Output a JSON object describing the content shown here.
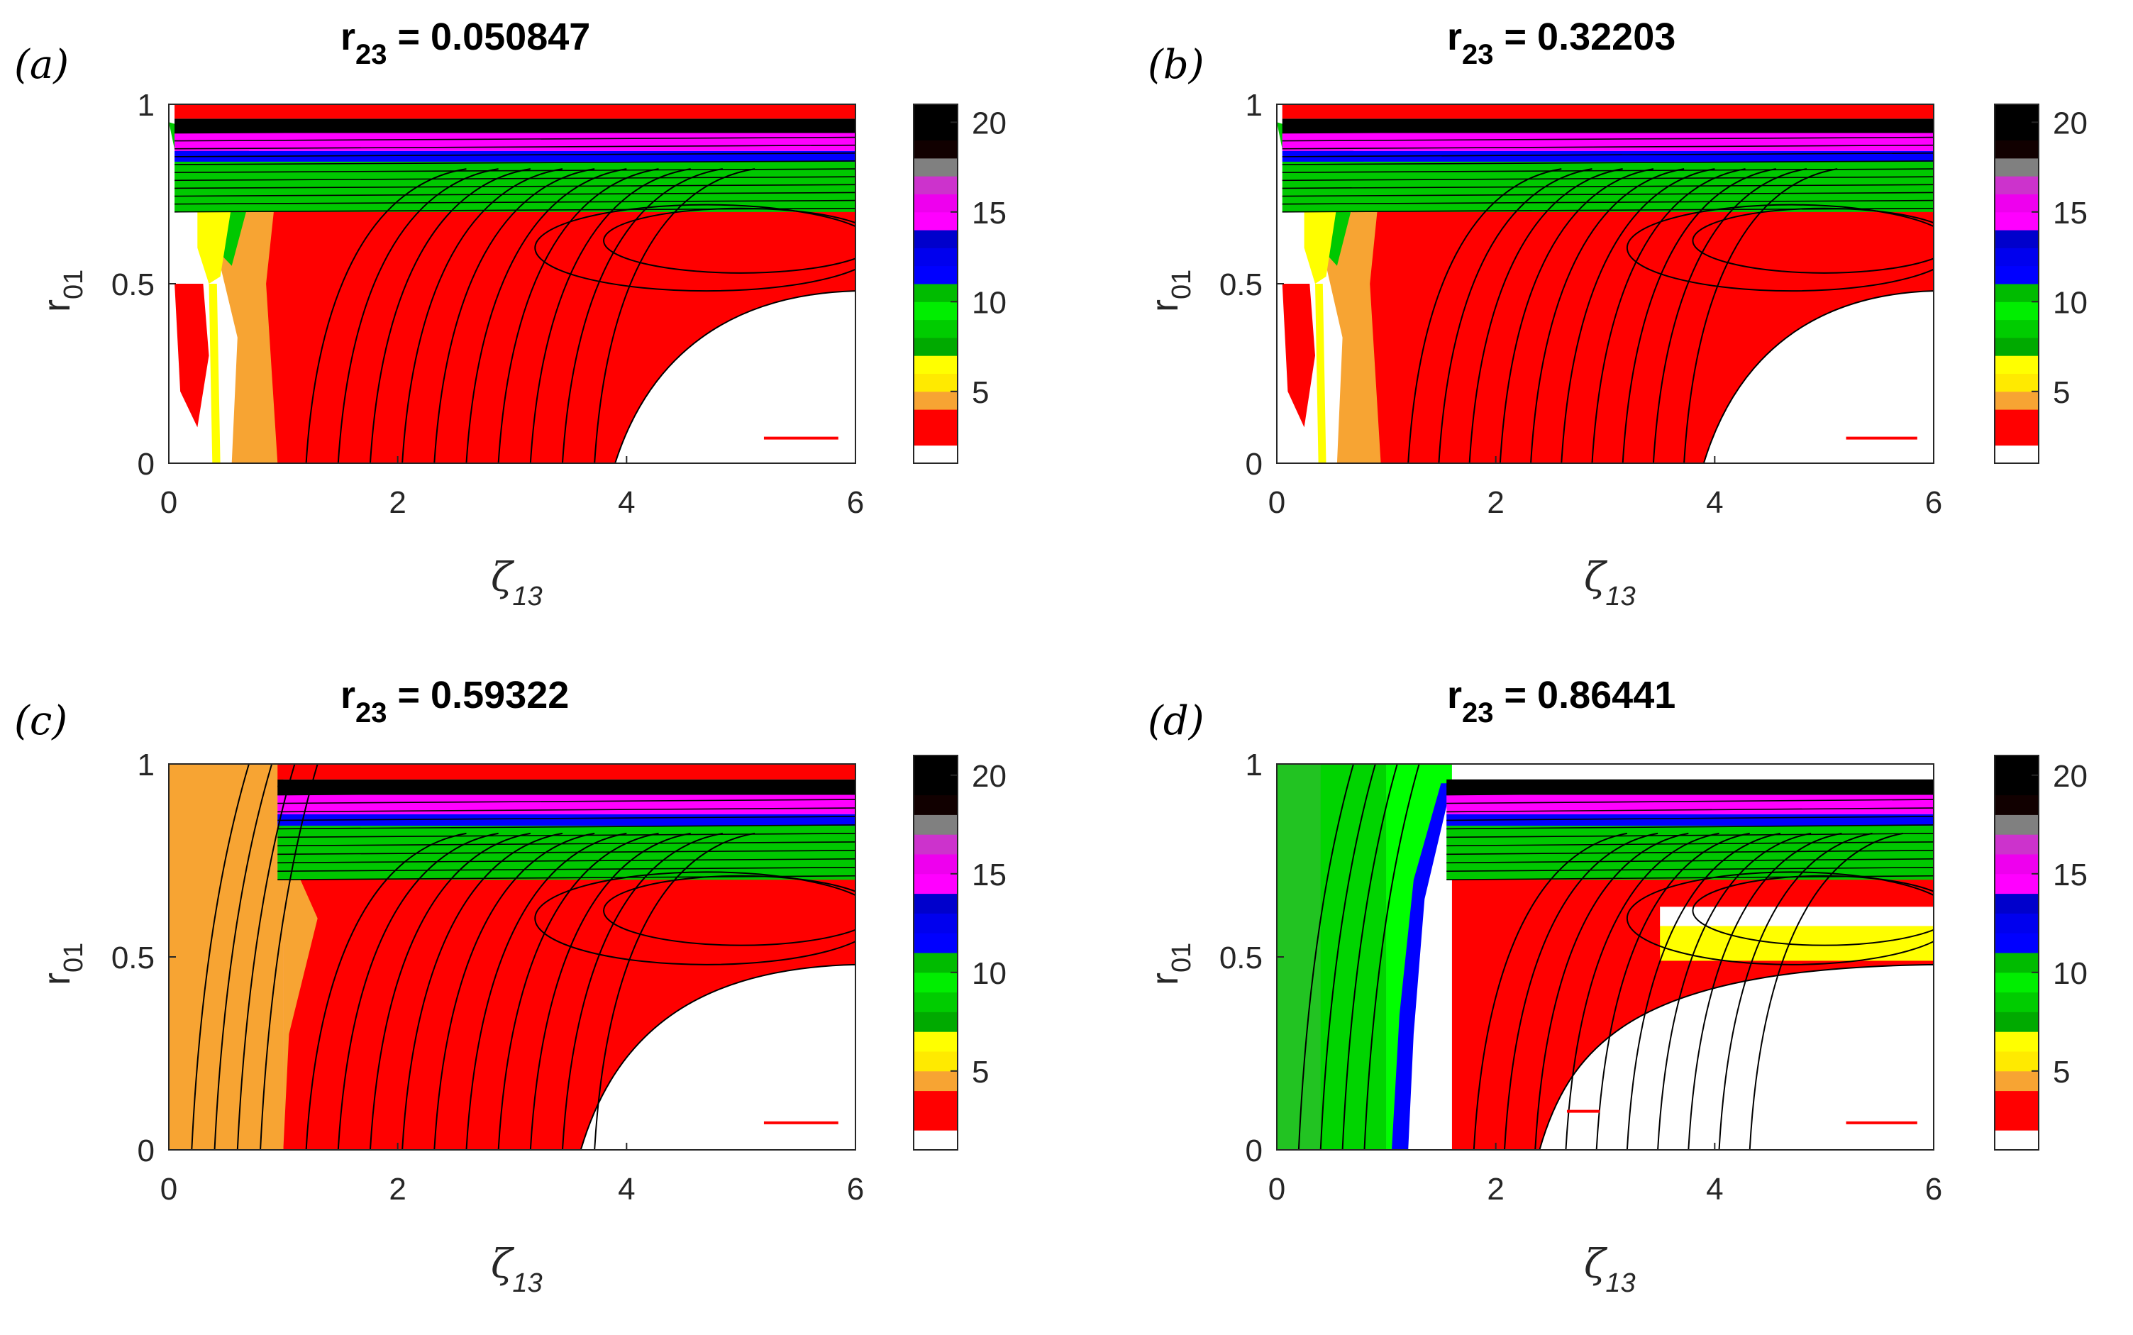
{
  "chart_data": [
    {
      "type": "heatmap",
      "panel_label": "(a)",
      "title": {
        "main": "r",
        "sub": "23",
        "value": " = 0.050847"
      },
      "xlabel": {
        "main": "ζ",
        "sub": "13"
      },
      "ylabel": {
        "main": "r",
        "sub": "01"
      },
      "xlim": [
        0,
        6
      ],
      "ylim": [
        0,
        1
      ],
      "xticks": [
        "0",
        "2",
        "4",
        "6"
      ],
      "yticks": [
        "0",
        "0.5",
        "1"
      ],
      "colorbar": {
        "range": [
          1,
          21
        ],
        "ticks": [
          "5",
          "10",
          "15",
          "20"
        ]
      }
    },
    {
      "type": "heatmap",
      "panel_label": "(b)",
      "title": {
        "main": "r",
        "sub": "23",
        "value": " = 0.32203"
      },
      "xlabel": {
        "main": "ζ",
        "sub": "13"
      },
      "ylabel": {
        "main": "r",
        "sub": "01"
      },
      "xlim": [
        0,
        6
      ],
      "ylim": [
        0,
        1
      ],
      "xticks": [
        "0",
        "2",
        "4",
        "6"
      ],
      "yticks": [
        "0",
        "0.5",
        "1"
      ],
      "colorbar": {
        "range": [
          1,
          21
        ],
        "ticks": [
          "5",
          "10",
          "15",
          "20"
        ]
      }
    },
    {
      "type": "heatmap",
      "panel_label": "(c)",
      "title": {
        "main": "r",
        "sub": "23",
        "value": " = 0.59322"
      },
      "xlabel": {
        "main": "ζ",
        "sub": "13"
      },
      "ylabel": {
        "main": "r",
        "sub": "01"
      },
      "xlim": [
        0,
        6
      ],
      "ylim": [
        0,
        1
      ],
      "xticks": [
        "0",
        "2",
        "4",
        "6"
      ],
      "yticks": [
        "0",
        "0.5",
        "1"
      ],
      "colorbar": {
        "range": [
          1,
          21
        ],
        "ticks": [
          "5",
          "10",
          "15",
          "20"
        ]
      }
    },
    {
      "type": "heatmap",
      "panel_label": "(d)",
      "title": {
        "main": "r",
        "sub": "23",
        "value": " = 0.86441"
      },
      "xlabel": {
        "main": "ζ",
        "sub": "13"
      },
      "ylabel": {
        "main": "r",
        "sub": "01"
      },
      "xlim": [
        0,
        6
      ],
      "ylim": [
        0,
        1
      ],
      "xticks": [
        "0",
        "2",
        "4",
        "6"
      ],
      "yticks": [
        "0",
        "0.5",
        "1"
      ],
      "colorbar": {
        "range": [
          1,
          21
        ],
        "ticks": [
          "5",
          "10",
          "15",
          "20"
        ]
      }
    }
  ],
  "colormap": [
    "#ffffff",
    "#ff0000",
    "#ff0000",
    "#f7a433",
    "#ffea00",
    "#ffff00",
    "#00aa00",
    "#00cc00",
    "#00ee00",
    "#00bb00",
    "#0000ff",
    "#0000ee",
    "#0000cc",
    "#ff00ff",
    "#ee00ee",
    "#cc33cc",
    "#808080",
    "#110000",
    "#000000",
    "#000000"
  ],
  "colors": {
    "red": "#ff0000",
    "orange": "#f7a433",
    "yellow": "#ffff00",
    "green": "#00c800",
    "light_green": "#00ff00",
    "blue": "#0000ff",
    "magenta": "#ff00ff",
    "white": "#ffffff",
    "black": "#000000"
  }
}
